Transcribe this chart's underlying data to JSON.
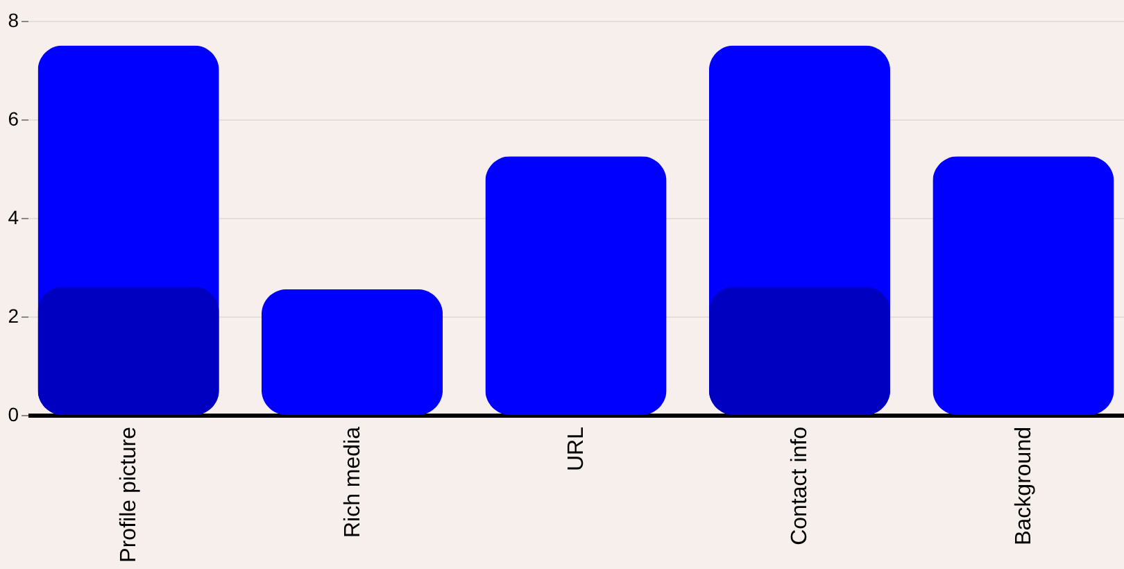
{
  "chart_data": {
    "type": "bar",
    "categories": [
      "Profile picture",
      "Rich media",
      "URL",
      "Contact info",
      "Background"
    ],
    "series": [
      {
        "color": "#0000ff",
        "values": [
          7.5,
          2.55,
          5.25,
          7.5,
          5.25
        ]
      },
      {
        "color": "#0000c0",
        "values": [
          2.6,
          null,
          null,
          2.6,
          null
        ]
      }
    ],
    "ylim": [
      0,
      8
    ],
    "yticks": [
      0,
      2,
      4,
      6,
      8
    ],
    "grid": "y"
  }
}
